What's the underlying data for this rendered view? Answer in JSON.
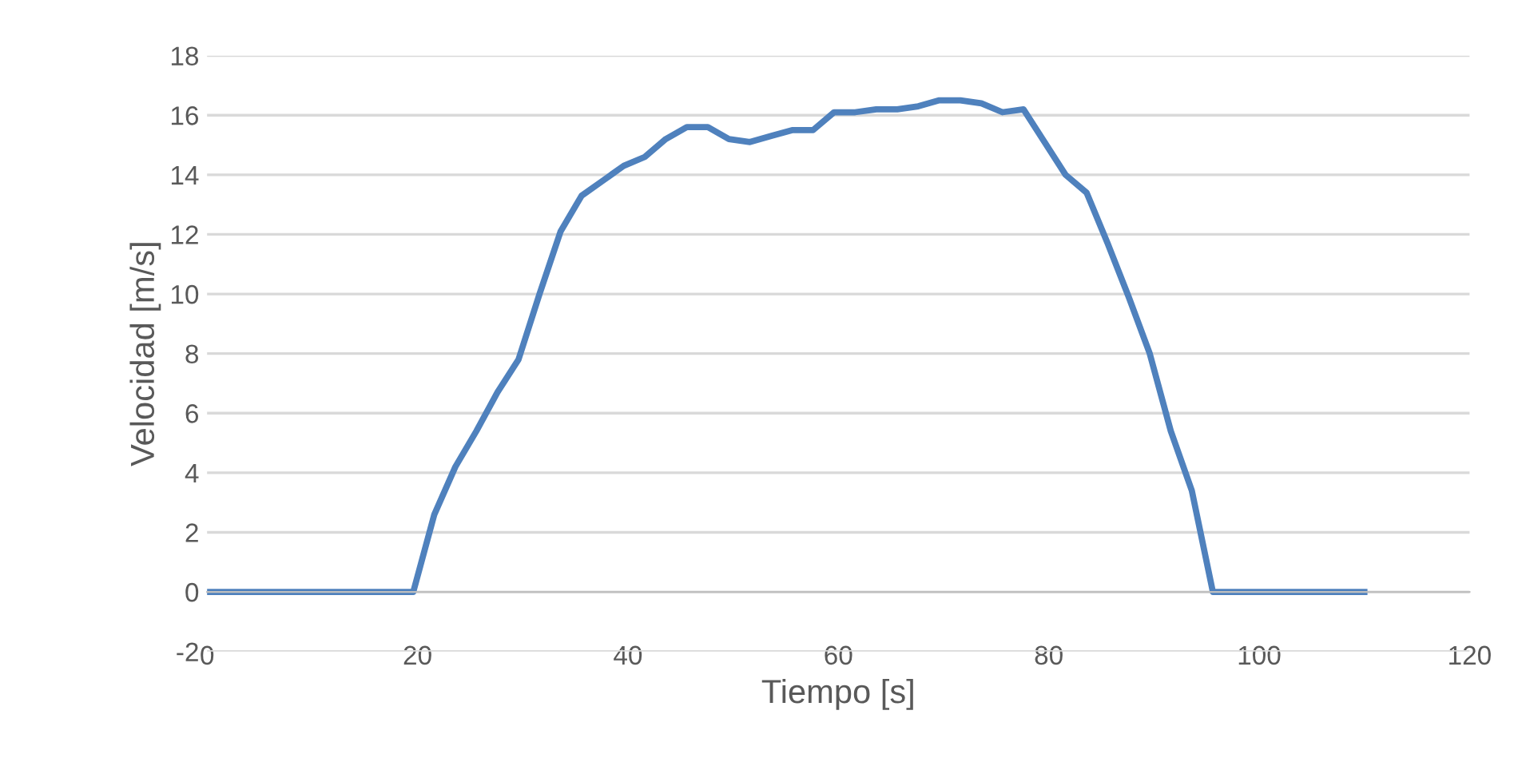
{
  "chart_data": {
    "type": "line",
    "xlabel": "Tiempo [s]",
    "ylabel": "Velocidad [m/s]",
    "xlim": [
      0,
      120
    ],
    "xticks": [
      0,
      20,
      40,
      60,
      80,
      100,
      120
    ],
    "ylim": [
      -2,
      18
    ],
    "yticks": [
      -2,
      0,
      2,
      4,
      6,
      8,
      10,
      12,
      14,
      16,
      18
    ],
    "grid": "y",
    "marker": "none",
    "line_style": "solid",
    "series": [
      {
        "color": "#4f81bd",
        "x": [
          0,
          19.6,
          21.6,
          23.6,
          25.6,
          27.6,
          29.6,
          31.6,
          33.6,
          35.6,
          37.6,
          39.6,
          41.6,
          43.6,
          45.6,
          47.6,
          49.6,
          51.6,
          53.6,
          55.6,
          57.6,
          59.6,
          61.6,
          63.6,
          65.6,
          67.6,
          69.6,
          71.6,
          73.6,
          75.6,
          77.6,
          79.6,
          81.6,
          83.6,
          85.6,
          87.6,
          89.6,
          91.6,
          93.6,
          95.6,
          110
        ],
        "values": [
          0,
          0,
          2.6,
          4.2,
          5.4,
          6.7,
          7.8,
          10.0,
          12.1,
          13.3,
          13.8,
          14.3,
          14.6,
          15.2,
          15.6,
          15.6,
          15.2,
          15.1,
          15.3,
          15.5,
          15.5,
          16.1,
          16.1,
          16.2,
          16.2,
          16.3,
          16.5,
          16.5,
          16.4,
          16.1,
          16.2,
          15.1,
          14.0,
          13.4,
          11.7,
          9.9,
          8.0,
          5.4,
          3.4,
          0,
          0
        ]
      }
    ]
  }
}
